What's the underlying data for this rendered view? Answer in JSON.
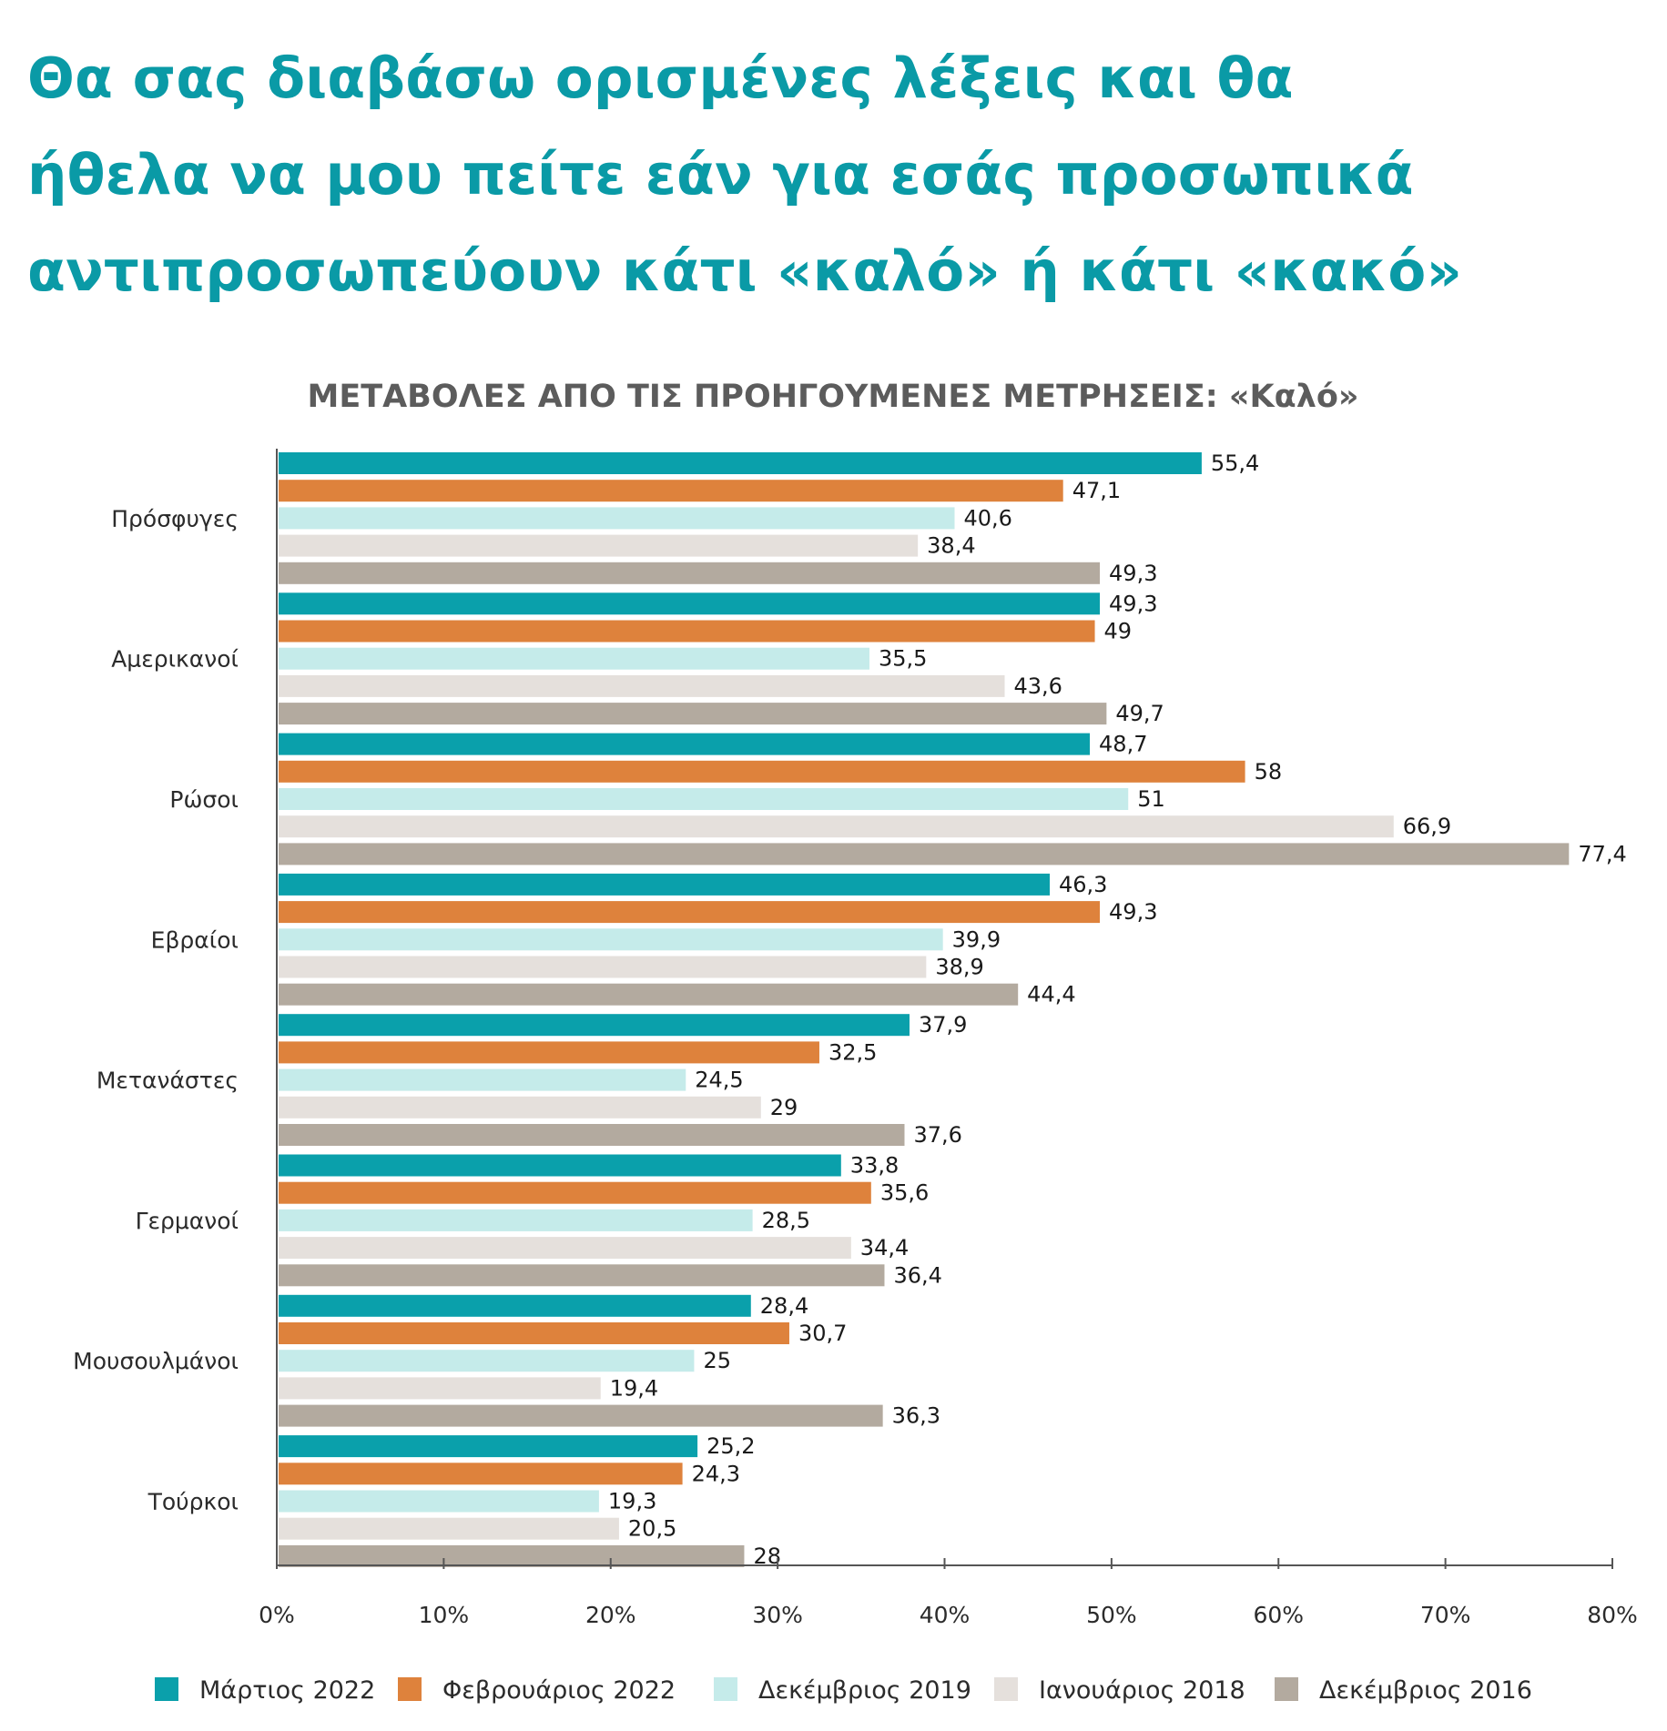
{
  "title_lines": [
    "Θα σας διαβάσω ορισμένες λέξεις και θα",
    "ήθελα να μου πείτε εάν για εσάς προσωπικά",
    "αντιπροσωπεύουν κάτι «καλό» ή κάτι «κακό»"
  ],
  "chart_data": {
    "type": "bar",
    "orientation": "horizontal",
    "subtitle": "ΜΕΤΑΒΟΛΕΣ ΑΠΟ ΤΙΣ ΠΡΟΗΓΟΥΜΕΝΕΣ ΜΕΤΡΗΣΕΙΣ: «Καλό»",
    "categories": [
      "Πρόσφυγες",
      "Αμερικανοί",
      "Ρώσοι",
      "Εβραίοι",
      "Μετανάστες",
      "Γερμανοί",
      "Μουσουλμάνοι",
      "Τούρκοι"
    ],
    "series": [
      {
        "name": "Μάρτιος 2022",
        "color": "#0aa0ab",
        "values": [
          55.4,
          49.3,
          48.7,
          46.3,
          37.9,
          33.8,
          28.4,
          25.2
        ],
        "labels": [
          "55,4",
          "49,3",
          "48,7",
          "46,3",
          "37,9",
          "33,8",
          "28,4",
          "25,2"
        ]
      },
      {
        "name": "Φεβρουάριος 2022",
        "color": "#de823c",
        "values": [
          47.1,
          49,
          58,
          49.3,
          32.5,
          35.6,
          30.7,
          24.3
        ],
        "labels": [
          "47,1",
          "49",
          "58",
          "49,3",
          "32,5",
          "35,6",
          "30,7",
          "24,3"
        ]
      },
      {
        "name": "Δεκέμβριος 2019",
        "color": "#c5ebea",
        "values": [
          40.6,
          35.5,
          51,
          39.9,
          24.5,
          28.5,
          25,
          19.3
        ],
        "labels": [
          "40,6",
          "35,5",
          "51",
          "39,9",
          "24,5",
          "28,5",
          "25",
          "19,3"
        ]
      },
      {
        "name": "Ιανουάριος 2018",
        "color": "#e5e0dc",
        "values": [
          38.4,
          43.6,
          66.9,
          38.9,
          29,
          34.4,
          19.4,
          20.5
        ],
        "labels": [
          "38,4",
          "43,6",
          "66,9",
          "38,9",
          "29",
          "34,4",
          "19,4",
          "20,5"
        ]
      },
      {
        "name": "Δεκέμβριος 2016",
        "color": "#b3aa9f",
        "values": [
          49.3,
          49.7,
          77.4,
          44.4,
          37.6,
          36.4,
          36.3,
          28
        ],
        "labels": [
          "49,3",
          "49,7",
          "77,4",
          "44,4",
          "37,6",
          "36,4",
          "36,3",
          "28"
        ]
      }
    ],
    "xlim": [
      0,
      80
    ],
    "x_ticks": [
      "0%",
      "10%",
      "20%",
      "30%",
      "40%",
      "50%",
      "60%",
      "70%",
      "80%"
    ],
    "legend_position": "bottom",
    "grid": false
  }
}
